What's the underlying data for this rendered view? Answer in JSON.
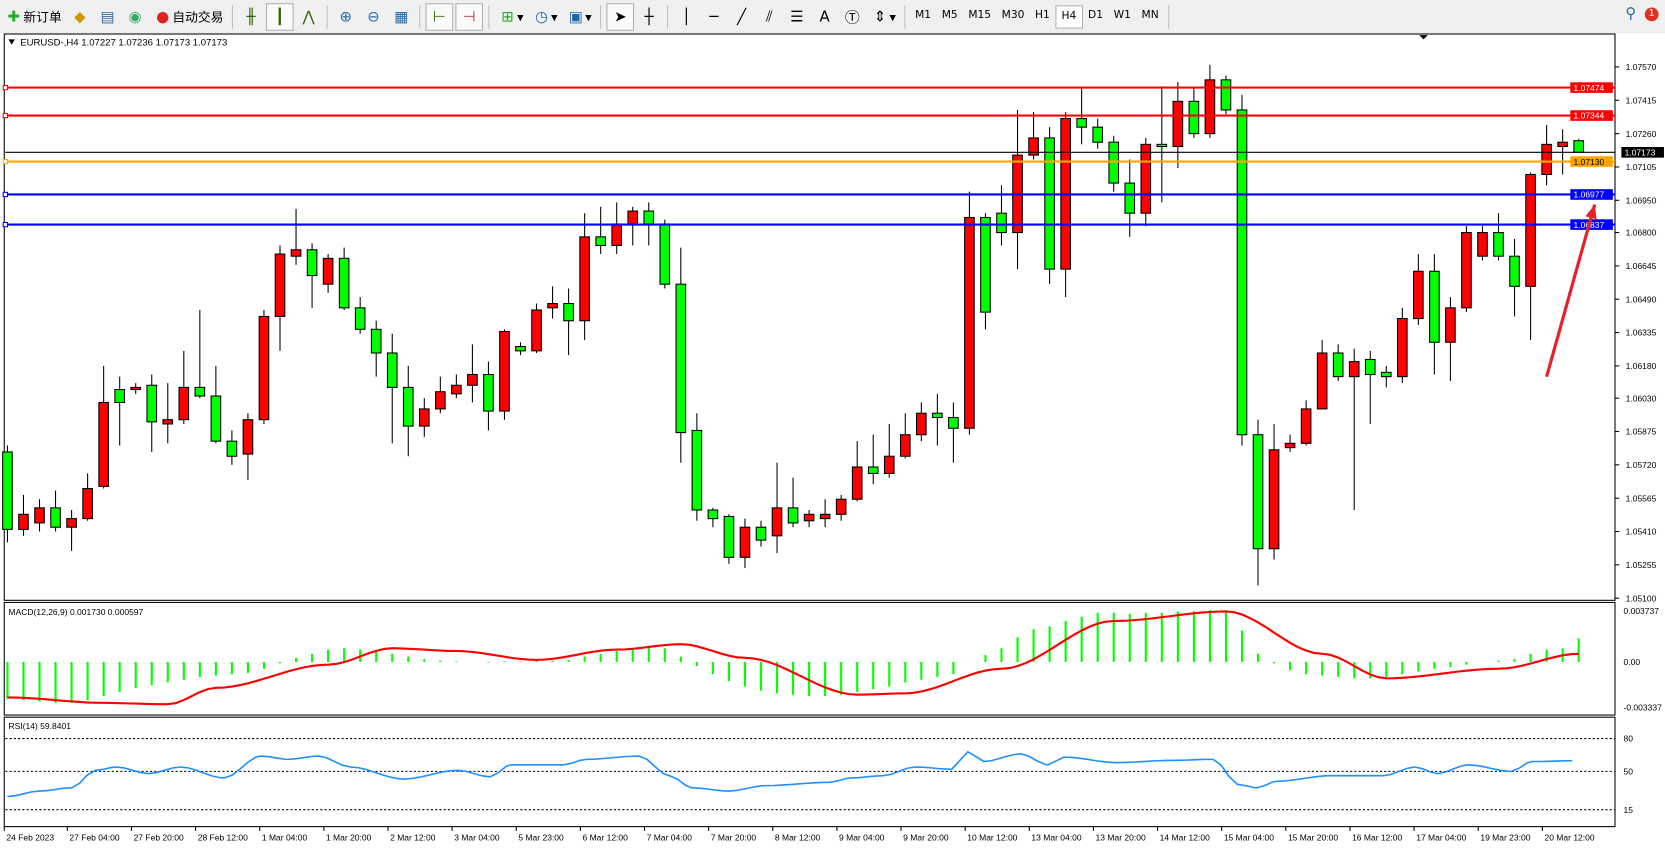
{
  "toolbar": {
    "new_order": "新订单",
    "auto_trading": "自动交易",
    "icons": [
      "market-watch-icon",
      "navigator-icon",
      "signals-icon",
      "bar-chart-icon",
      "candlestick-icon",
      "line-chart-icon",
      "zoom-in-icon",
      "zoom-out-icon",
      "tile-windows-icon",
      "auto-scroll-icon",
      "chart-shift-icon",
      "indicators-icon",
      "periods-icon",
      "templates-icon",
      "cursor-icon",
      "crosshair-icon",
      "vertical-line-icon",
      "horizontal-line-icon",
      "trendline-icon",
      "fibonacci-icon",
      "text-icon",
      "text-label-icon",
      "arrows-icon"
    ],
    "timeframes": [
      "M1",
      "M5",
      "M15",
      "M30",
      "H1",
      "H4",
      "D1",
      "W1",
      "MN"
    ],
    "active_timeframe": "H4",
    "text_tool": "A",
    "notifications": "1"
  },
  "chart": {
    "header": "EURUSD-,H4  1.07227 1.07236 1.07173 1.07173",
    "up_color": "#ff0000",
    "down_color": "#00ff00",
    "price_ticks": [
      "1.07570",
      "1.07415",
      "1.07260",
      "1.07105",
      "1.06950",
      "1.06800",
      "1.06645",
      "1.06490",
      "1.06335",
      "1.06180",
      "1.06030",
      "1.05875",
      "1.05720",
      "1.05565",
      "1.05410",
      "1.05255",
      "1.05100"
    ],
    "levels": [
      {
        "price": 1.07474,
        "label": "1.07474",
        "color": "#ff0000"
      },
      {
        "price": 1.07344,
        "label": "1.07344",
        "color": "#ff0000"
      },
      {
        "price": 1.07173,
        "label": "1.07173",
        "color": "#000000"
      },
      {
        "price": 1.0713,
        "label": "1.07130",
        "color": "#ffa500"
      },
      {
        "price": 1.06977,
        "label": "1.06977",
        "color": "#0000ff"
      },
      {
        "price": 1.06837,
        "label": "1.06837",
        "color": "#0000ff"
      }
    ],
    "annotation_arrow": {
      "color": "#e8202a",
      "from": {
        "candle": 96,
        "price": 1.0613
      },
      "to": {
        "candle": 99,
        "price": 1.0693
      }
    },
    "candles": [
      [
        1.0578,
        1.0581,
        1.0536,
        1.0542
      ],
      [
        1.0542,
        1.0558,
        1.0539,
        1.0549
      ],
      [
        1.0545,
        1.0556,
        1.0541,
        1.0552
      ],
      [
        1.0552,
        1.056,
        1.0541,
        1.0543
      ],
      [
        1.0543,
        1.0551,
        1.0532,
        1.0547
      ],
      [
        1.0547,
        1.0568,
        1.0546,
        1.0561
      ],
      [
        1.0562,
        1.0618,
        1.0561,
        1.0601
      ],
      [
        1.0607,
        1.0613,
        1.0581,
        1.0601
      ],
      [
        1.0607,
        1.061,
        1.0605,
        1.0608
      ],
      [
        1.0609,
        1.0614,
        1.0578,
        1.0592
      ],
      [
        1.0591,
        1.061,
        1.0582,
        1.0593
      ],
      [
        1.0593,
        1.0625,
        1.0591,
        1.0608
      ],
      [
        1.0608,
        1.0644,
        1.0603,
        1.0604
      ],
      [
        1.0604,
        1.0618,
        1.0582,
        1.0583
      ],
      [
        1.0583,
        1.0588,
        1.0572,
        1.0576
      ],
      [
        1.0577,
        1.0596,
        1.0565,
        1.0593
      ],
      [
        1.0593,
        1.0644,
        1.0591,
        1.0641
      ],
      [
        1.0641,
        1.0674,
        1.0625,
        1.067
      ],
      [
        1.0669,
        1.0691,
        1.0665,
        1.0672
      ],
      [
        1.0672,
        1.0675,
        1.0645,
        1.066
      ],
      [
        1.0656,
        1.067,
        1.0652,
        1.0668
      ],
      [
        1.0668,
        1.0673,
        1.0644,
        1.0645
      ],
      [
        1.0645,
        1.065,
        1.0633,
        1.0635
      ],
      [
        1.0635,
        1.0639,
        1.0613,
        1.0624
      ],
      [
        1.0624,
        1.0633,
        1.0582,
        1.0608
      ],
      [
        1.0608,
        1.0618,
        1.0576,
        1.059
      ],
      [
        1.059,
        1.0603,
        1.0585,
        1.0598
      ],
      [
        1.0598,
        1.0613,
        1.0596,
        1.0606
      ],
      [
        1.0605,
        1.0614,
        1.0603,
        1.0609
      ],
      [
        1.0609,
        1.0628,
        1.0601,
        1.0614
      ],
      [
        1.0614,
        1.062,
        1.0588,
        1.0597
      ],
      [
        1.0597,
        1.0635,
        1.0593,
        1.0634
      ],
      [
        1.0627,
        1.0629,
        1.0623,
        1.0625
      ],
      [
        1.0625,
        1.0647,
        1.0624,
        1.0644
      ],
      [
        1.0645,
        1.0655,
        1.064,
        1.0647
      ],
      [
        1.0647,
        1.0654,
        1.0623,
        1.0639
      ],
      [
        1.0639,
        1.0689,
        1.063,
        1.0678
      ],
      [
        1.0678,
        1.0692,
        1.067,
        1.0674
      ],
      [
        1.0674,
        1.0694,
        1.067,
        1.0684
      ],
      [
        1.0684,
        1.0692,
        1.0674,
        1.069
      ],
      [
        1.069,
        1.0694,
        1.0674,
        1.0684
      ],
      [
        1.0684,
        1.0686,
        1.0654,
        1.0656
      ],
      [
        1.0656,
        1.0673,
        1.0573,
        1.0587
      ],
      [
        1.0588,
        1.0596,
        1.0546,
        1.0551
      ],
      [
        1.0551,
        1.0552,
        1.0543,
        1.0547
      ],
      [
        1.0548,
        1.0549,
        1.0526,
        1.0529
      ],
      [
        1.0529,
        1.0547,
        1.0524,
        1.0543
      ],
      [
        1.0543,
        1.0546,
        1.0534,
        1.0537
      ],
      [
        1.0539,
        1.0573,
        1.0531,
        1.0552
      ],
      [
        1.0552,
        1.0566,
        1.0543,
        1.0545
      ],
      [
        1.0546,
        1.0551,
        1.0543,
        1.0549
      ],
      [
        1.0547,
        1.0556,
        1.0543,
        1.0549
      ],
      [
        1.0549,
        1.0558,
        1.0546,
        1.0556
      ],
      [
        1.0556,
        1.0583,
        1.0555,
        1.0571
      ],
      [
        1.0571,
        1.0586,
        1.0563,
        1.0568
      ],
      [
        1.0568,
        1.0591,
        1.0566,
        1.0576
      ],
      [
        1.0576,
        1.0596,
        1.0575,
        1.0586
      ],
      [
        1.0586,
        1.0601,
        1.0583,
        1.0596
      ],
      [
        1.0596,
        1.0605,
        1.0581,
        1.0594
      ],
      [
        1.0594,
        1.0601,
        1.0573,
        1.0589
      ],
      [
        1.0589,
        1.0699,
        1.0586,
        1.0687
      ],
      [
        1.0687,
        1.0689,
        1.0635,
        1.0643
      ],
      [
        1.0689,
        1.0702,
        1.0674,
        1.068
      ],
      [
        1.068,
        1.0737,
        1.0663,
        1.0716
      ],
      [
        1.0716,
        1.0736,
        1.0714,
        1.0724
      ],
      [
        1.0724,
        1.0729,
        1.0656,
        1.0663
      ],
      [
        1.0663,
        1.0736,
        1.065,
        1.0733
      ],
      [
        1.0733,
        1.0747,
        1.0721,
        1.0729
      ],
      [
        1.0729,
        1.0733,
        1.0719,
        1.0722
      ],
      [
        1.0722,
        1.0725,
        1.0699,
        1.0703
      ],
      [
        1.0703,
        1.0714,
        1.0678,
        1.0689
      ],
      [
        1.0689,
        1.0724,
        1.0683,
        1.0721
      ],
      [
        1.0721,
        1.0748,
        1.0694,
        1.072
      ],
      [
        1.072,
        1.075,
        1.071,
        1.0741
      ],
      [
        1.0741,
        1.0747,
        1.0724,
        1.0726
      ],
      [
        1.0726,
        1.0758,
        1.0724,
        1.0751
      ],
      [
        1.0751,
        1.0753,
        1.0735,
        1.0737
      ],
      [
        1.0737,
        1.0744,
        1.0581,
        1.0586
      ],
      [
        1.0586,
        1.0593,
        1.0516,
        1.0533
      ],
      [
        1.0533,
        1.0591,
        1.0528,
        1.0579
      ],
      [
        1.058,
        1.0586,
        1.0578,
        1.0582
      ],
      [
        1.0582,
        1.0602,
        1.0581,
        1.0598
      ],
      [
        1.0598,
        1.063,
        1.0598,
        1.0624
      ],
      [
        1.0624,
        1.0628,
        1.0611,
        1.0613
      ],
      [
        1.0613,
        1.0626,
        1.0551,
        1.062
      ],
      [
        1.0621,
        1.0625,
        1.0591,
        1.0614
      ],
      [
        1.0615,
        1.0618,
        1.0608,
        1.0613
      ],
      [
        1.0613,
        1.0645,
        1.061,
        1.064
      ],
      [
        1.064,
        1.067,
        1.0637,
        1.0662
      ],
      [
        1.0662,
        1.067,
        1.0614,
        1.0629
      ],
      [
        1.0629,
        1.065,
        1.0611,
        1.0645
      ],
      [
        1.0645,
        1.0683,
        1.0643,
        1.068
      ],
      [
        1.0669,
        1.0683,
        1.0667,
        1.068
      ],
      [
        1.068,
        1.0689,
        1.0667,
        1.0669
      ],
      [
        1.0669,
        1.0677,
        1.0641,
        1.0655
      ],
      [
        1.0655,
        1.0708,
        1.063,
        1.0707
      ],
      [
        1.0707,
        1.073,
        1.0702,
        1.0721
      ],
      [
        1.072,
        1.0728,
        1.0707,
        1.0722
      ],
      [
        1.07227,
        1.07236,
        1.07173,
        1.07173
      ]
    ]
  },
  "macd": {
    "header": "MACD(12,26,9) 0.001730 0.000597",
    "ticks": [
      "0.003737",
      "0.00",
      "-0.003337"
    ],
    "hist_color": "#00ff00",
    "signal_color": "#ff0000",
    "histogram": [
      -0.0027,
      -0.0028,
      -0.0029,
      -0.003,
      -0.003,
      -0.0028,
      -0.0025,
      -0.0022,
      -0.0019,
      -0.0017,
      -0.0015,
      -0.0013,
      -0.0011,
      -0.001,
      -0.0009,
      -0.0008,
      -0.0005,
      -0.0001,
      0.0003,
      0.0006,
      0.0009,
      0.001,
      0.0009,
      0.0008,
      0.0006,
      0.0004,
      0.0002,
      0.0001,
      5e-05,
      0.0,
      -5e-05,
      5e-05,
      5e-05,
      0.0001,
      0.0001,
      0.00015,
      0.0004,
      0.0006,
      0.0008,
      0.001,
      0.0011,
      0.001,
      0.0004,
      -0.0003,
      -0.0009,
      -0.0014,
      -0.0018,
      -0.0021,
      -0.0023,
      -0.0024,
      -0.0025,
      -0.0025,
      -0.0024,
      -0.0022,
      -0.002,
      -0.0018,
      -0.0015,
      -0.0013,
      -0.0011,
      -0.0009,
      0.0,
      0.0005,
      0.001,
      0.0018,
      0.0024,
      0.0026,
      0.003,
      0.0033,
      0.0036,
      0.0036,
      0.0035,
      0.0036,
      0.0036,
      0.0037,
      0.0037,
      0.0038,
      0.0038,
      0.0023,
      0.0006,
      -0.0001,
      -0.0006,
      -0.0009,
      -0.001,
      -0.0011,
      -0.0012,
      -0.0012,
      -0.0011,
      -0.0009,
      -0.0007,
      -0.0005,
      -0.0004,
      -0.0002,
      0.0,
      0.0001,
      0.0002,
      0.0006,
      0.0009,
      0.001,
      0.00173
    ],
    "signal": [
      [
        0,
        -0.0026
      ],
      [
        6,
        -0.003
      ],
      [
        10,
        -0.0031
      ],
      [
        13,
        -0.0019
      ],
      [
        20,
        -0.0002
      ],
      [
        24,
        0.001
      ],
      [
        28,
        0.0008
      ],
      [
        33,
        0.00015
      ],
      [
        38,
        0.0009
      ],
      [
        42,
        0.0013
      ],
      [
        46,
        0.0003
      ],
      [
        53,
        -0.0024
      ],
      [
        56,
        -0.0023
      ],
      [
        62,
        -0.0005
      ],
      [
        69,
        0.003
      ],
      [
        76,
        0.0037
      ],
      [
        82,
        0.0006
      ],
      [
        86,
        -0.0012
      ],
      [
        93,
        -0.0005
      ],
      [
        98,
        0.000597
      ]
    ]
  },
  "rsi": {
    "header": "RSI(14) 59.8401",
    "ticks": [
      "80",
      "50",
      "15"
    ],
    "line_color": "#1e90ff",
    "values": [
      [
        0,
        27
      ],
      [
        2,
        32
      ],
      [
        4,
        35
      ],
      [
        5.5,
        51
      ],
      [
        6.8,
        54
      ],
      [
        8.8,
        48
      ],
      [
        10.8,
        54
      ],
      [
        13.5,
        44
      ],
      [
        15.8,
        64
      ],
      [
        17.5,
        61
      ],
      [
        19.4,
        64
      ],
      [
        21.4,
        54
      ],
      [
        24.7,
        43
      ],
      [
        28.1,
        51
      ],
      [
        30.1,
        45
      ],
      [
        31.4,
        56
      ],
      [
        34.7,
        56
      ],
      [
        36.1,
        61
      ],
      [
        39.4,
        64
      ],
      [
        41.3,
        46
      ],
      [
        42.7,
        35
      ],
      [
        45,
        32
      ],
      [
        47.3,
        37
      ],
      [
        51.3,
        40
      ],
      [
        52.6,
        44
      ],
      [
        54.6,
        46
      ],
      [
        56.6,
        54
      ],
      [
        58.9,
        52
      ],
      [
        59.9,
        68
      ],
      [
        60.9,
        59
      ],
      [
        63.2,
        66
      ],
      [
        64.9,
        56
      ],
      [
        65.9,
        63
      ],
      [
        69.2,
        58
      ],
      [
        72.5,
        60
      ],
      [
        75.2,
        61
      ],
      [
        76.8,
        38
      ],
      [
        77.9,
        35
      ],
      [
        79.2,
        41
      ],
      [
        82.5,
        46
      ],
      [
        85.8,
        46
      ],
      [
        87.8,
        54
      ],
      [
        89.2,
        48
      ],
      [
        91.1,
        56
      ],
      [
        93.8,
        50
      ],
      [
        95.1,
        59
      ],
      [
        98,
        59.84
      ]
    ]
  },
  "time_axis": [
    "24 Feb 2023",
    "27 Feb 04:00",
    "27 Feb 20:00",
    "28 Feb 12:00",
    "1 Mar 04:00",
    "1 Mar 20:00",
    "2 Mar 12:00",
    "3 Mar 04:00",
    "5 Mar 23:00",
    "6 Mar 12:00",
    "7 Mar 04:00",
    "7 Mar 20:00",
    "8 Mar 12:00",
    "9 Mar 04:00",
    "9 Mar 20:00",
    "10 Mar 12:00",
    "13 Mar 04:00",
    "13 Mar 20:00",
    "14 Mar 12:00",
    "15 Mar 04:00",
    "15 Mar 20:00",
    "16 Mar 12:00",
    "17 Mar 04:00",
    "19 Mar 23:00",
    "20 Mar 12:00"
  ]
}
